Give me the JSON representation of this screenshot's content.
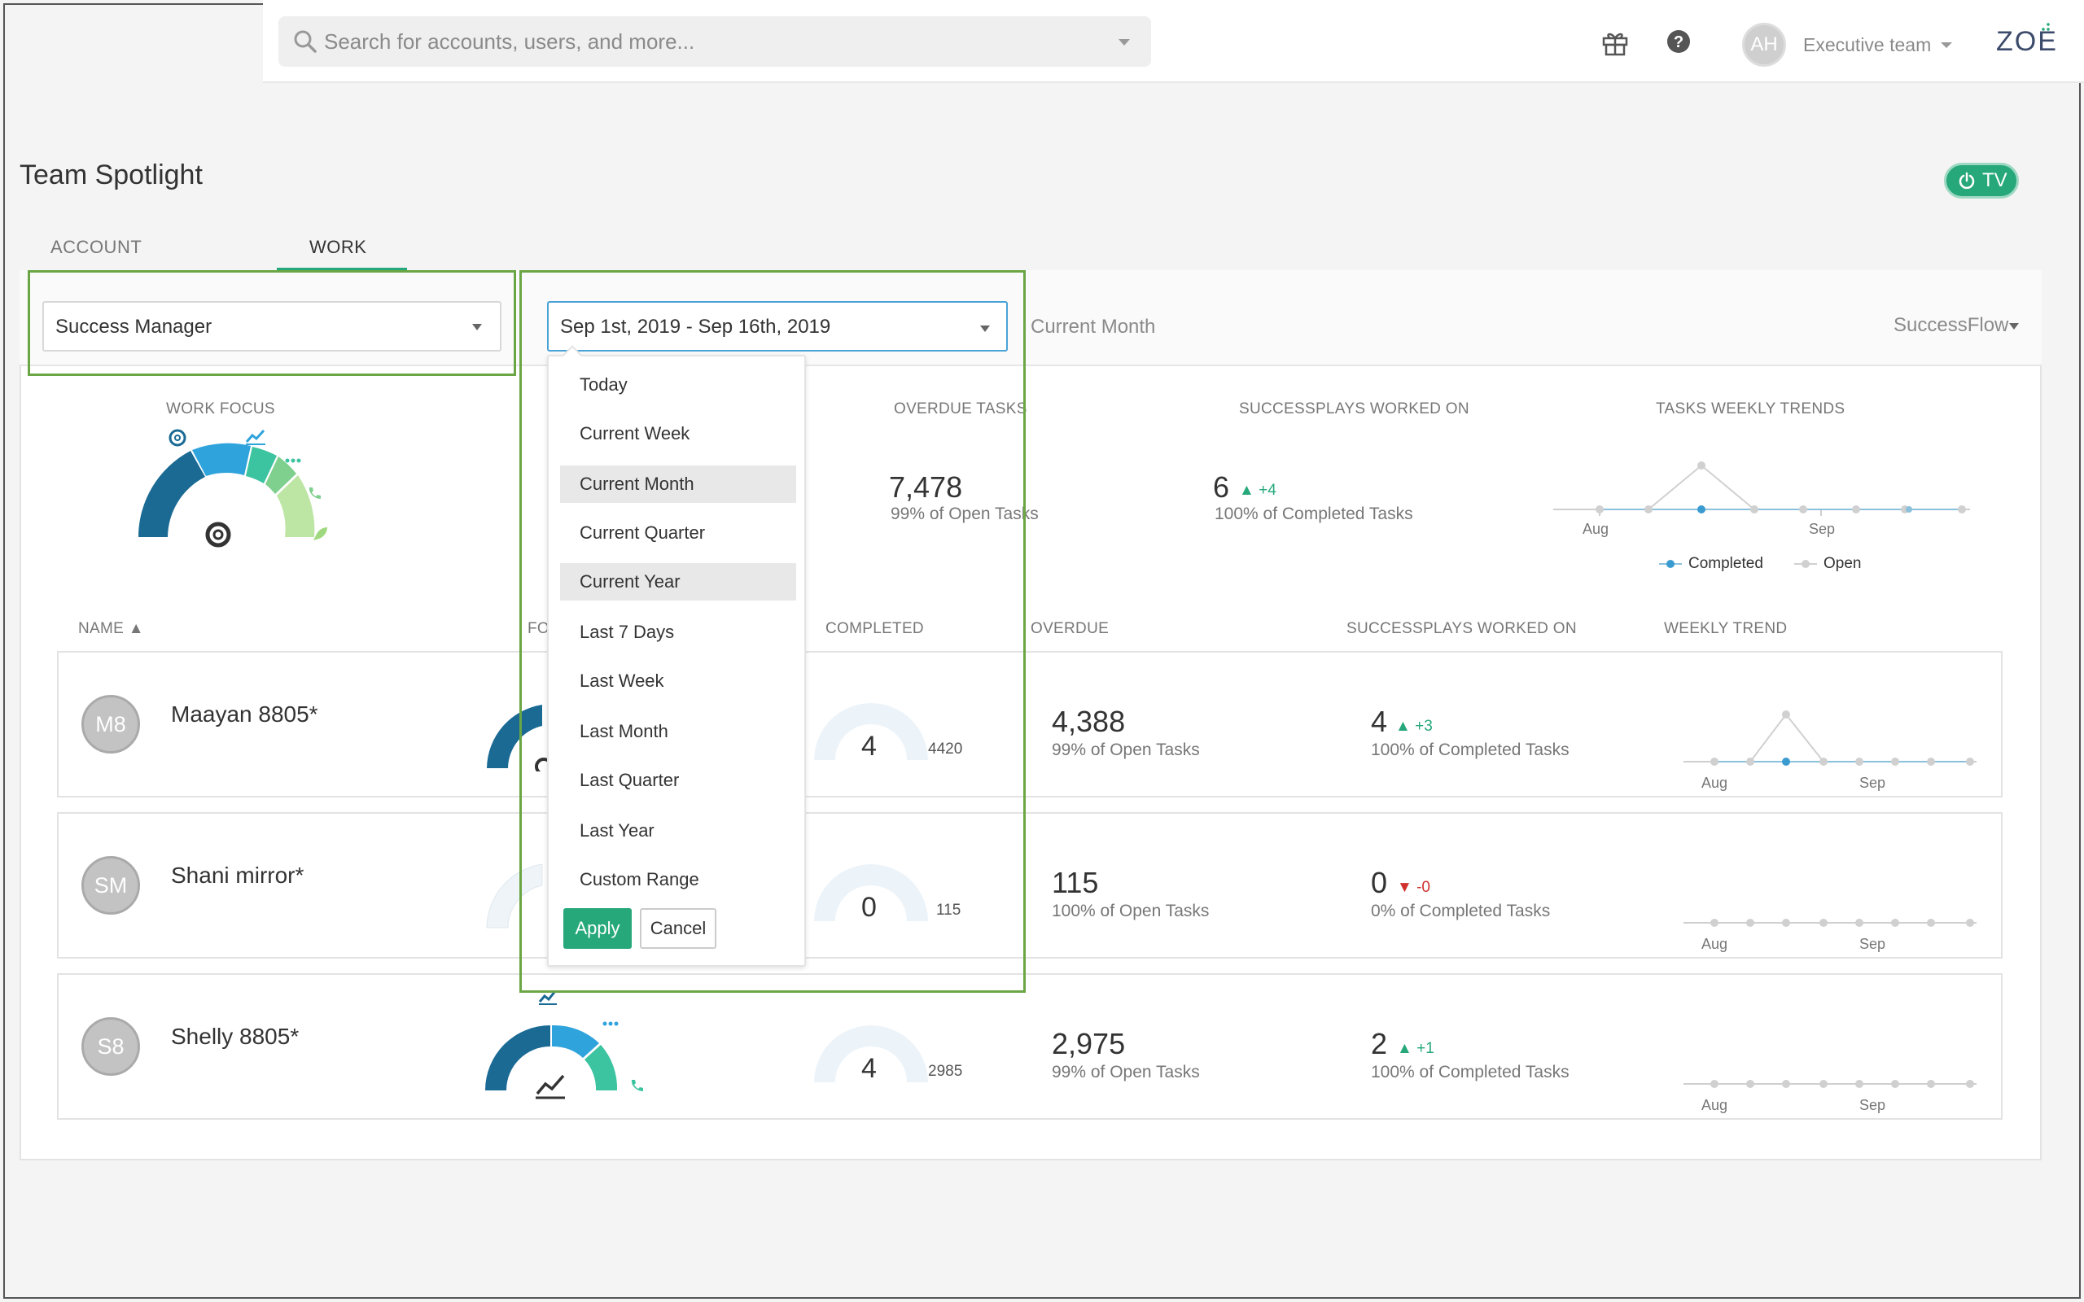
{
  "header": {
    "search_placeholder": "Search for accounts, users, and more...",
    "avatar_initials": "AH",
    "team_label": "Executive team",
    "logo": "ZOE"
  },
  "page": {
    "title": "Team Spotlight",
    "tv_label": "TV",
    "tabs": [
      {
        "label": "ACCOUNT COVERAGE"
      },
      {
        "label": "WORK FOCUS"
      }
    ]
  },
  "filters": {
    "role_value": "Success Manager",
    "date_value": "Sep 1st, 2019 - Sep 16th, 2019",
    "period_label": "Current Month",
    "flow_label": "SuccessFlow"
  },
  "dropdown": {
    "items": [
      "Today",
      "Current Week",
      "Current Month",
      "Current Quarter",
      "Current Year",
      "Last 7 Days",
      "Last Week",
      "Last Month",
      "Last Quarter",
      "Last Year",
      "Custom Range"
    ],
    "apply_label": "Apply",
    "cancel_label": "Cancel"
  },
  "summary": {
    "work_focus_label": "WORK FOCUS",
    "overdue_label": "OVERDUE TASKS",
    "overdue_value": "7,478",
    "overdue_sub": "99% of Open Tasks",
    "plays_label": "SUCCESSPLAYS WORKED ON",
    "plays_value": "6",
    "plays_delta": "+4",
    "plays_sub": "100% of Completed Tasks",
    "trends_label": "TASKS WEEKLY TRENDS",
    "axis_aug": "Aug",
    "axis_sep": "Sep",
    "legend_completed": "Completed",
    "legend_open": "Open"
  },
  "table": {
    "col_name": "NAME",
    "col_focus": "FO",
    "col_completed": "COMPLETED",
    "col_overdue": "OVERDUE",
    "col_plays": "SUCCESSPLAYS WORKED ON",
    "col_trend": "WEEKLY TREND",
    "rows": [
      {
        "initials": "M8",
        "name": "Maayan 8805*",
        "completed": "4",
        "total": "4420",
        "overdue": "4,388",
        "overdue_sub": "99% of Open Tasks",
        "plays": "4",
        "plays_delta": "+3",
        "plays_sub": "100% of Completed Tasks",
        "aug": "Aug",
        "sep": "Sep"
      },
      {
        "initials": "SM",
        "name": "Shani mirror*",
        "completed": "0",
        "total": "115",
        "overdue": "115",
        "overdue_sub": "100% of Open Tasks",
        "plays": "0",
        "plays_delta": "-0",
        "plays_sub": "0% of Completed Tasks",
        "aug": "Aug",
        "sep": "Sep"
      },
      {
        "initials": "S8",
        "name": "Shelly 8805*",
        "completed": "4",
        "total": "2985",
        "overdue": "2,975",
        "overdue_sub": "99% of Open Tasks",
        "plays": "2",
        "plays_delta": "+1",
        "plays_sub": "100% of Completed Tasks",
        "aug": "Aug",
        "sep": "Sep"
      }
    ]
  },
  "colors": {
    "accent": "#26a87b",
    "highlight": "#6aa645",
    "focus_dark": "#1a6a94",
    "focus_blue": "#2fa3dc"
  }
}
